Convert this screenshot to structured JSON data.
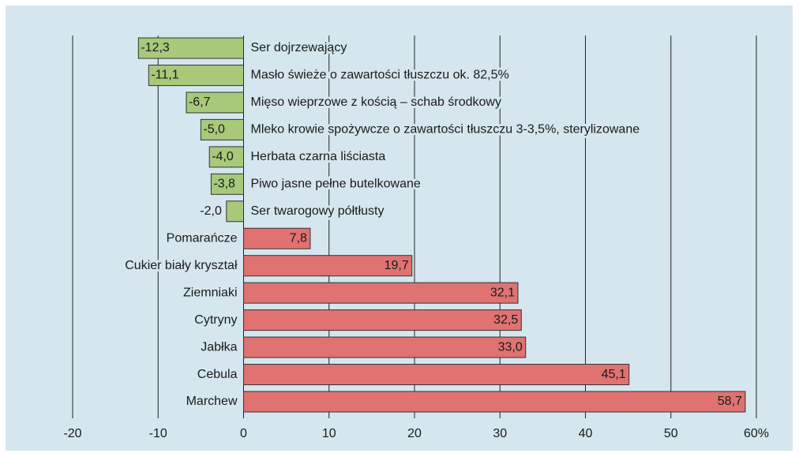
{
  "chart_data": {
    "type": "barh",
    "categories": [
      "Ser dojrzewający",
      "Masło świeże o zawartości tłuszczu ok. 82,5%",
      "Mięso wieprzowe z kością – schab środkowy",
      "Mleko krowie spożywcze o zawartości tłuszczu 3-3,5%, sterylizowane",
      "Herbata czarna liściasta",
      "Piwo jasne pełne butelkowane",
      "Ser twarogowy półtłusty",
      "Pomarańcze",
      "Cukier biały kryształ",
      "Ziemniaki",
      "Cytryny",
      "Jabłka",
      "Cebula",
      "Marchew"
    ],
    "values": [
      -12.3,
      -11.1,
      -6.7,
      -5.0,
      -4.0,
      -3.8,
      -2.0,
      7.8,
      19.7,
      32.1,
      32.5,
      33.0,
      45.1,
      58.7
    ],
    "value_labels": [
      "-12,3",
      "-11,1",
      "-6,7",
      "-5,0",
      "-4,0",
      "-3,8",
      "-2,0",
      "7,8",
      "19,7",
      "32,1",
      "32,5",
      "33,0",
      "45,1",
      "58,7"
    ],
    "negative_color": "#a8c87a",
    "positive_color": "#e07272",
    "xlim": [
      -20,
      60
    ],
    "xticks": [
      -20,
      -10,
      0,
      10,
      20,
      30,
      40,
      50,
      {
        "value": 60,
        "label": "60%"
      }
    ],
    "grid": true
  }
}
